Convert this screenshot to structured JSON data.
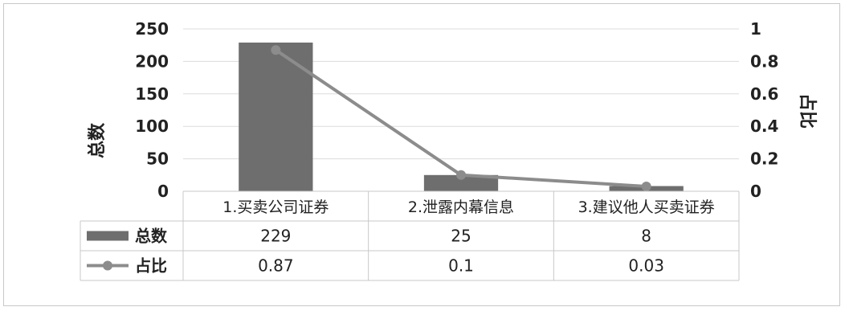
{
  "chart_data": {
    "type": "bar",
    "categories": [
      "1.买卖公司证券",
      "2.泄露内幕信息",
      "3.建议他人买卖证券"
    ],
    "series": [
      {
        "name": "总数",
        "type": "bar",
        "axis": "left",
        "values": [
          229,
          25,
          8
        ]
      },
      {
        "name": "占比",
        "type": "line",
        "axis": "right",
        "values": [
          0.87,
          0.1,
          0.03
        ]
      }
    ],
    "ylabel": "总数",
    "y2label": "占比",
    "ylim": [
      0,
      250
    ],
    "y2lim": [
      0,
      1
    ],
    "yticks": [
      "0",
      "50",
      "100",
      "150",
      "200",
      "250"
    ],
    "y2ticks": [
      "0",
      "0.2",
      "0.4",
      "0.6",
      "0.8",
      "1"
    ],
    "grid": true,
    "data_table": {
      "rows": [
        {
          "label": "总数",
          "cells": [
            "229",
            "25",
            "8"
          ]
        },
        {
          "label": "占比",
          "cells": [
            "0.87",
            "0.1",
            "0.03"
          ]
        }
      ]
    },
    "colors": {
      "bar": "#6e6e6e",
      "line": "#8c8c8c",
      "grid": "#dcdcdc",
      "table_border": "#c8c8c8"
    }
  }
}
